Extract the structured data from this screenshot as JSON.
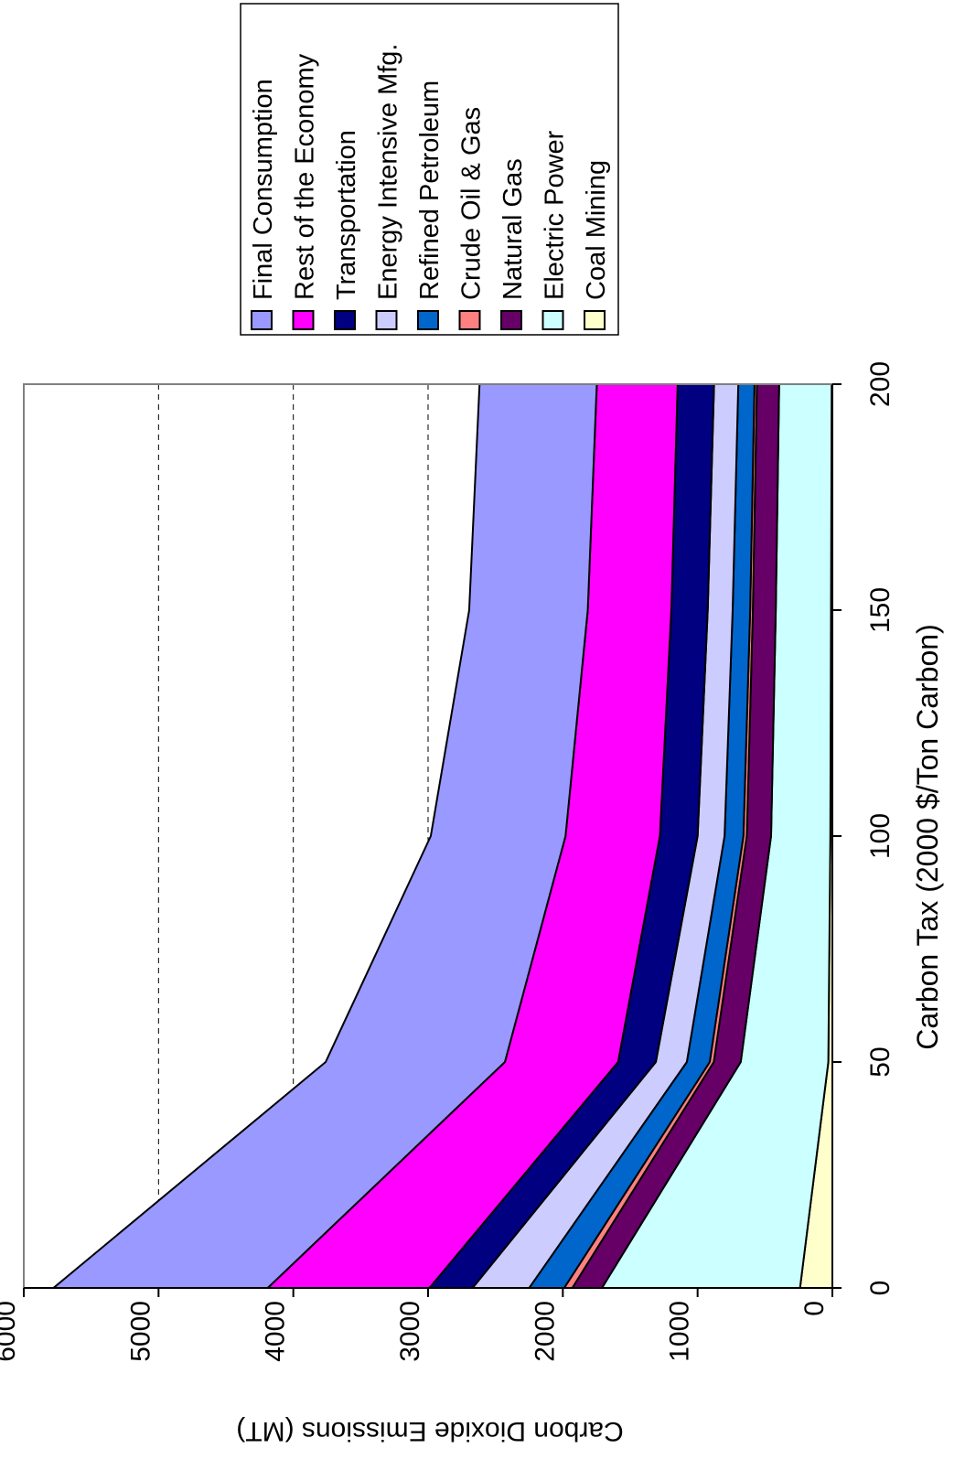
{
  "chart_data": {
    "type": "area",
    "stacked": true,
    "orientation": "rotated-90-clockwise",
    "xlabel": "Carbon Tax (2000 $/Ton Carbon)",
    "ylabel": "Carbon Dioxide Emissions (MT)",
    "x": [
      0,
      50,
      100,
      150,
      200
    ],
    "xlim": [
      0,
      200
    ],
    "ylim": [
      0,
      6000
    ],
    "x_ticks": [
      "0",
      "50",
      "100",
      "150",
      "200"
    ],
    "y_ticks": [
      "0",
      "1000",
      "2000",
      "3000",
      "4000",
      "5000",
      "6000"
    ],
    "grid": "horizontal dashed at 3000, 4000, 5000",
    "legend_position": "top-right",
    "series": [
      {
        "name": "Coal Mining",
        "color": "#FFFFCC",
        "values": [
          240,
          30,
          15,
          10,
          5
        ]
      },
      {
        "name": "Electric Power",
        "color": "#CCFFFF",
        "values": [
          1470,
          650,
          440,
          410,
          390
        ]
      },
      {
        "name": "Natural Gas",
        "color": "#660066",
        "values": [
          220,
          200,
          180,
          170,
          165
        ]
      },
      {
        "name": "Crude Oil & Gas",
        "color": "#FF8080",
        "values": [
          60,
          30,
          25,
          20,
          18
        ]
      },
      {
        "name": "Refined Petroleum",
        "color": "#0066CC",
        "values": [
          260,
          170,
          140,
          130,
          120
        ]
      },
      {
        "name": "Energy Intensive Mfg.",
        "color": "#CCCCFF",
        "values": [
          420,
          230,
          200,
          185,
          180
        ]
      },
      {
        "name": "Transportation",
        "color": "#000080",
        "values": [
          320,
          280,
          280,
          270,
          270
        ]
      },
      {
        "name": "Rest of the Economy",
        "color": "#FF00FF",
        "values": [
          1200,
          840,
          700,
          620,
          600
        ]
      },
      {
        "name": "Final Consumption",
        "color": "#9999FF",
        "values": [
          1590,
          1330,
          1000,
          880,
          870
        ]
      }
    ]
  }
}
